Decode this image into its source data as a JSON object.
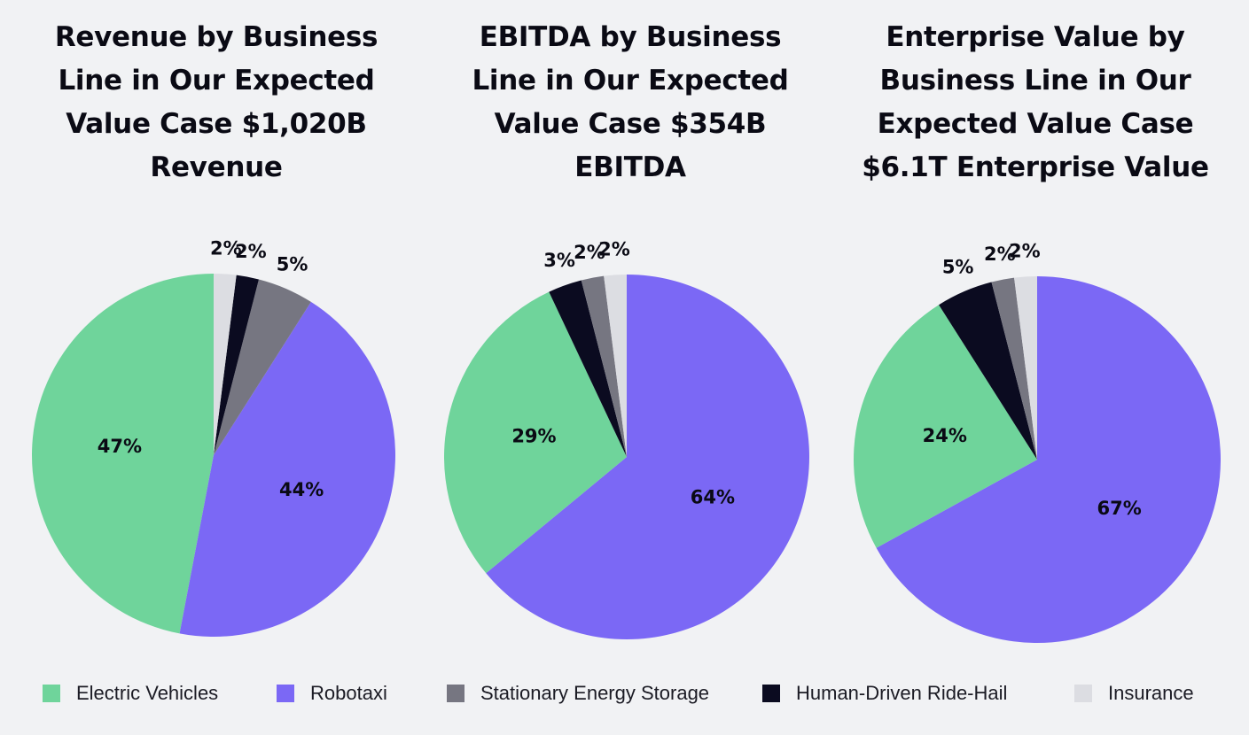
{
  "colors": {
    "background": "#f1f2f4",
    "electric_vehicles": "#6fd49b",
    "robotaxi": "#7b68f5",
    "stationary_energy_storage": "#767681",
    "human_driven_ride_hail": "#0b0b20",
    "insurance": "#dcdde2"
  },
  "legend": [
    {
      "label": "Electric Vehicles",
      "color_key": "electric_vehicles"
    },
    {
      "label": "Robotaxi",
      "color_key": "robotaxi"
    },
    {
      "label": "Stationary Energy Storage",
      "color_key": "stationary_energy_storage"
    },
    {
      "label": "Human-Driven Ride-Hail",
      "color_key": "human_driven_ride_hail"
    },
    {
      "label": "Insurance",
      "color_key": "insurance"
    }
  ],
  "chart_data": [
    {
      "type": "pie",
      "title": "Revenue by Business Line in Our Expected Value Case $1,020B Revenue",
      "title_lines": [
        "Revenue by Business",
        "Line in Our Expected",
        "Value Case $1,020B",
        "Revenue"
      ],
      "slices": [
        {
          "name": "Electric Vehicles",
          "value": 47,
          "label": "47%",
          "color_key": "electric_vehicles"
        },
        {
          "name": "Robotaxi",
          "value": 44,
          "label": "44%",
          "color_key": "robotaxi"
        },
        {
          "name": "Stationary Energy Storage",
          "value": 5,
          "label": "5%",
          "color_key": "stationary_energy_storage"
        },
        {
          "name": "Human-Driven Ride-Hail",
          "value": 2,
          "label": "2%",
          "color_key": "human_driven_ride_hail"
        },
        {
          "name": "Insurance",
          "value": 2,
          "label": "2%",
          "color_key": "insurance"
        }
      ]
    },
    {
      "type": "pie",
      "title": "EBITDA by Business Line in Our Expected Value Case $354B EBITDA",
      "title_lines": [
        "EBITDA by Business",
        "Line in Our Expected",
        "Value Case $354B",
        "EBITDA"
      ],
      "slices": [
        {
          "name": "Robotaxi",
          "value": 64,
          "label": "64%",
          "color_key": "robotaxi"
        },
        {
          "name": "Electric Vehicles",
          "value": 29,
          "label": "29%",
          "color_key": "electric_vehicles"
        },
        {
          "name": "Human-Driven Ride-Hail",
          "value": 3,
          "label": "3%",
          "color_key": "human_driven_ride_hail"
        },
        {
          "name": "Stationary Energy Storage",
          "value": 2,
          "label": "2%",
          "color_key": "stationary_energy_storage"
        },
        {
          "name": "Insurance",
          "value": 2,
          "label": "2%",
          "color_key": "insurance"
        }
      ]
    },
    {
      "type": "pie",
      "title": "Enterprise Value by Business Line in Our Expected Value Case $6.1T Enterprise Value",
      "title_lines": [
        "Enterprise Value by",
        "Business Line in Our",
        "Expected Value Case",
        "$6.1T Enterprise Value"
      ],
      "slices": [
        {
          "name": "Robotaxi",
          "value": 67,
          "label": "67%",
          "color_key": "robotaxi"
        },
        {
          "name": "Electric Vehicles",
          "value": 24,
          "label": "24%",
          "color_key": "electric_vehicles"
        },
        {
          "name": "Human-Driven Ride-Hail",
          "value": 5,
          "label": "5%",
          "color_key": "human_driven_ride_hail"
        },
        {
          "name": "Stationary Energy Storage",
          "value": 2,
          "label": "2%",
          "color_key": "stationary_energy_storage"
        },
        {
          "name": "Insurance",
          "value": 2,
          "label": "2%",
          "color_key": "insurance"
        }
      ]
    }
  ]
}
